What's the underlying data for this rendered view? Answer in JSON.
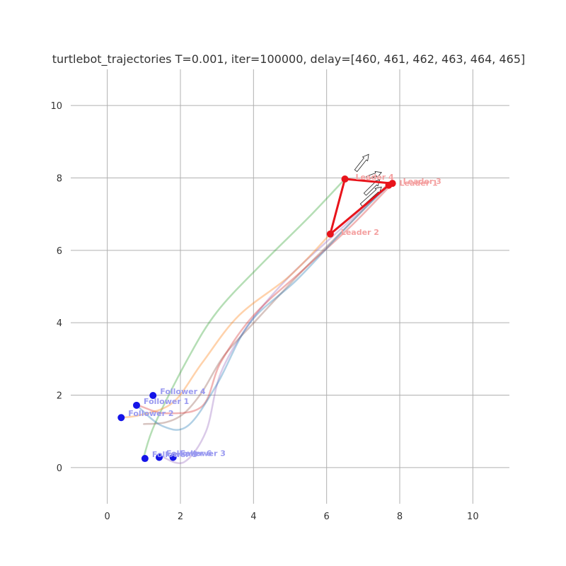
{
  "chart_data": {
    "type": "scatter",
    "title": "turtlebot_trajectories T=0.001, iter=100000, delay=[460, 461, 462, 463, 464, 465]",
    "xlabel": "",
    "ylabel": "",
    "xlim": [
      -1,
      11
    ],
    "ylim": [
      -1,
      11
    ],
    "grid": true,
    "x_ticks": [
      "0",
      "2",
      "4",
      "6",
      "8",
      "10"
    ],
    "y_ticks": [
      "0",
      "2",
      "4",
      "6",
      "8",
      "10"
    ],
    "colors": {
      "leader": "#e8141b",
      "leader_label": "#f4a0a0",
      "follower": "#1414e8",
      "follower_label": "#9a9af0",
      "grid": "#b0b0b0"
    },
    "leaders": [
      {
        "label": "Leader 1",
        "x": 7.7,
        "y": 7.8
      },
      {
        "label": "Leader 2",
        "x": 6.1,
        "y": 6.45
      },
      {
        "label": "Leader 3",
        "x": 7.8,
        "y": 7.85
      },
      {
        "label": "Leader 4",
        "x": 6.5,
        "y": 7.97
      }
    ],
    "leader_polygon_order": [
      3,
      1,
      0,
      2
    ],
    "followers": [
      {
        "label": "Follower 1",
        "x": 0.8,
        "y": 1.72
      },
      {
        "label": "Follower 2",
        "x": 0.38,
        "y": 1.38
      },
      {
        "label": "Follower 3",
        "x": 1.8,
        "y": 0.28
      },
      {
        "label": "Follower 4",
        "x": 1.25,
        "y": 1.99
      },
      {
        "label": "Follower 5",
        "x": 1.03,
        "y": 0.25
      },
      {
        "label": "Follower 6",
        "x": 1.42,
        "y": 0.28
      }
    ],
    "trajectories": [
      {
        "color": "#2ca02c",
        "points": [
          [
            6.5,
            7.97
          ],
          [
            5.5,
            6.9
          ],
          [
            4.2,
            5.6
          ],
          [
            3.0,
            4.3
          ],
          [
            2.2,
            3.0
          ],
          [
            1.3,
            1.2
          ],
          [
            1.0,
            0.3
          ]
        ]
      },
      {
        "color": "#9467bd",
        "points": [
          [
            7.7,
            7.8
          ],
          [
            6.4,
            6.6
          ],
          [
            5.0,
            5.3
          ],
          [
            3.9,
            4.0
          ],
          [
            3.1,
            2.6
          ],
          [
            2.7,
            1.0
          ],
          [
            2.1,
            0.15
          ],
          [
            1.5,
            0.3
          ]
        ]
      },
      {
        "color": "#8c564b",
        "points": [
          [
            7.6,
            7.75
          ],
          [
            6.5,
            6.6
          ],
          [
            5.4,
            5.5
          ],
          [
            4.1,
            4.1
          ],
          [
            3.2,
            3.1
          ],
          [
            2.6,
            2.1
          ],
          [
            2.1,
            1.5
          ],
          [
            1.6,
            1.25
          ],
          [
            1.0,
            1.2
          ]
        ]
      },
      {
        "color": "#d62728",
        "points": [
          [
            7.8,
            7.85
          ],
          [
            6.7,
            6.7
          ],
          [
            5.4,
            5.5
          ],
          [
            4.0,
            4.2
          ],
          [
            3.1,
            2.9
          ],
          [
            2.6,
            1.7
          ],
          [
            1.6,
            1.5
          ],
          [
            0.9,
            1.7
          ]
        ]
      },
      {
        "color": "#1f77b4",
        "points": [
          [
            7.7,
            7.8
          ],
          [
            6.6,
            6.7
          ],
          [
            5.2,
            5.2
          ],
          [
            3.9,
            4.0
          ],
          [
            3.0,
            2.3
          ],
          [
            2.2,
            1.15
          ],
          [
            1.5,
            1.15
          ],
          [
            0.8,
            1.72
          ]
        ]
      },
      {
        "color": "#ff7f0e",
        "points": [
          [
            6.1,
            6.45
          ],
          [
            5.0,
            5.3
          ],
          [
            3.6,
            4.2
          ],
          [
            2.6,
            2.9
          ],
          [
            1.8,
            1.8
          ],
          [
            0.9,
            1.45
          ],
          [
            0.38,
            1.38
          ]
        ]
      }
    ],
    "heading_arrows": [
      {
        "x": 6.8,
        "y": 8.2,
        "dx": 0.35,
        "dy": 0.45
      },
      {
        "x": 7.1,
        "y": 8.0,
        "dx": 0.4,
        "dy": 0.15
      },
      {
        "x": 7.05,
        "y": 7.55,
        "dx": 0.4,
        "dy": 0.4
      },
      {
        "x": 6.95,
        "y": 7.25,
        "dx": 0.55,
        "dy": 0.5
      }
    ]
  }
}
